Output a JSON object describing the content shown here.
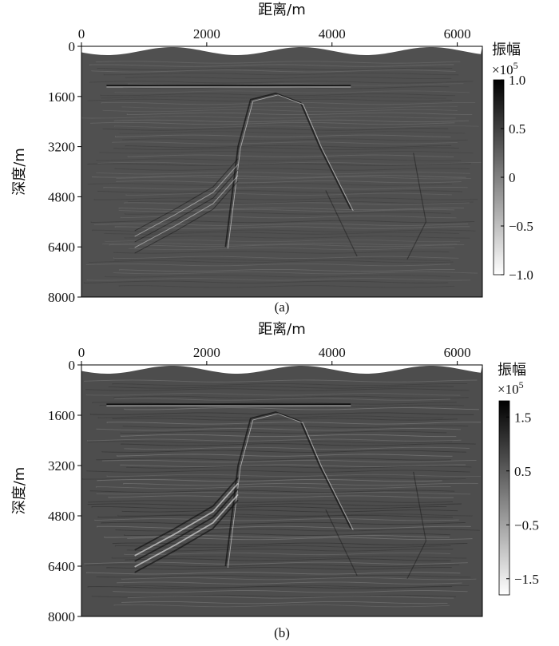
{
  "chart_data": [
    {
      "type": "heatmap",
      "panel_label": "(a)",
      "xlabel": "距离/m",
      "ylabel": "深度/m",
      "xlim": [
        0,
        6400
      ],
      "ylim": [
        8000,
        0
      ],
      "x_ticks": [
        "0",
        "2000",
        "4000",
        "6000"
      ],
      "x_tick_values": [
        0,
        2000,
        4000,
        6000
      ],
      "y_ticks": [
        "0",
        "1600",
        "3200",
        "4800",
        "6400",
        "8000"
      ],
      "y_tick_values": [
        0,
        1600,
        3200,
        4800,
        6400,
        8000
      ],
      "colorbar": {
        "title": "振幅",
        "unit_prefix": "×10",
        "unit_exp": "5",
        "ticks": [
          "1.0",
          "0.5",
          "0",
          "−0.5",
          "−1.0"
        ],
        "tick_values": [
          1.0,
          0.5,
          0,
          -0.5,
          -1.0
        ],
        "range": [
          -1.0,
          1.0
        ],
        "colormap": "gray (black = high, white = low)"
      },
      "background_color": "#505050"
    },
    {
      "type": "heatmap",
      "panel_label": "(b)",
      "xlabel": "距离/m",
      "ylabel": "深度/m",
      "xlim": [
        0,
        6400
      ],
      "ylim": [
        8000,
        0
      ],
      "x_ticks": [
        "0",
        "2000",
        "4000",
        "6000"
      ],
      "x_tick_values": [
        0,
        2000,
        4000,
        6000
      ],
      "y_ticks": [
        "0",
        "1600",
        "3200",
        "4800",
        "6400",
        "8000"
      ],
      "y_tick_values": [
        0,
        1600,
        3200,
        4800,
        6400,
        8000
      ],
      "colorbar": {
        "title": "振幅",
        "unit_prefix": "×10",
        "unit_exp": "5",
        "ticks": [
          "1.5",
          "0.5",
          "−0.5",
          "−1.5"
        ],
        "tick_values": [
          1.5,
          0.5,
          -0.5,
          -1.5
        ],
        "range": [
          -1.8,
          1.8
        ],
        "colormap": "gray (black = high, white = low)"
      },
      "background_color": "#4d4d4d"
    }
  ]
}
